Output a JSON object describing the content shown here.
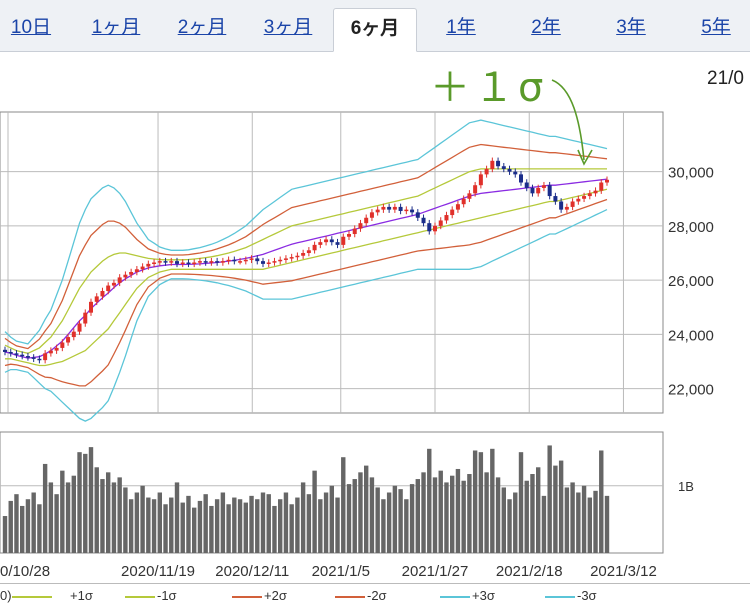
{
  "tabs": [
    {
      "label": "10日",
      "active": false
    },
    {
      "label": "1ヶ月",
      "active": false
    },
    {
      "label": "2ヶ月",
      "active": false
    },
    {
      "label": "3ヶ月",
      "active": false
    },
    {
      "label": "6ヶ月",
      "active": true
    },
    {
      "label": "1年",
      "active": false
    },
    {
      "label": "2年",
      "active": false
    },
    {
      "label": "3年",
      "active": false
    },
    {
      "label": "5年",
      "active": false
    }
  ],
  "header_date": "21/0",
  "annotation": "＋１σ",
  "legend": [
    {
      "label": "0)",
      "color": "#8a2be2"
    },
    {
      "label": "+1σ",
      "color": "#b5c93a"
    },
    {
      "label": "-1σ",
      "color": "#b5c93a"
    },
    {
      "label": "+2σ",
      "color": "#d2603a"
    },
    {
      "label": "-2σ",
      "color": "#d2603a"
    },
    {
      "label": "+3σ",
      "color": "#5bc5d8"
    },
    {
      "label": "-3σ",
      "color": "#5bc5d8"
    }
  ],
  "chart_data": {
    "type": "candlestick",
    "price_yticks": [
      22000,
      24000,
      26000,
      28000,
      30000
    ],
    "price_ytick_labels": [
      "22,000",
      "24,000",
      "26,000",
      "28,000",
      "30,000"
    ],
    "price_ylim": [
      21100,
      32200
    ],
    "volume_ytick_labels": [
      "1B"
    ],
    "volume_ytick_values": [
      1.0
    ],
    "volume_ylim": [
      0,
      1.8
    ],
    "x_tick_labels": [
      "0/10/28",
      "2020/11/19",
      "2020/12/11",
      "2021/1/5",
      "2021/1/27",
      "2021/2/18",
      "2021/3/12"
    ],
    "x_tick_index": [
      12,
      28,
      44,
      59,
      75,
      91,
      107
    ],
    "close": [
      23350,
      23300,
      23250,
      23200,
      23150,
      23100,
      23050,
      23300,
      23400,
      23500,
      23700,
      23900,
      24100,
      24400,
      24800,
      25200,
      25400,
      25600,
      25800,
      25900,
      26100,
      26200,
      26300,
      26400,
      26500,
      26600,
      26650,
      26700,
      26650,
      26700,
      26600,
      26650,
      26600,
      26650,
      26700,
      26650,
      26700,
      26650,
      26700,
      26750,
      26700,
      26700,
      26750,
      26800,
      26700,
      26600,
      26650,
      26700,
      26750,
      26800,
      26850,
      26900,
      27000,
      27100,
      27300,
      27400,
      27500,
      27400,
      27300,
      27600,
      27700,
      27900,
      28100,
      28300,
      28500,
      28600,
      28700,
      28600,
      28700,
      28550,
      28600,
      28500,
      28300,
      28100,
      27800,
      28000,
      28200,
      28400,
      28600,
      28800,
      29000,
      29200,
      29500,
      29900,
      30100,
      30400,
      30200,
      30100,
      30000,
      29900,
      29600,
      29400,
      29200,
      29400,
      29500,
      29100,
      28900,
      28600,
      28700,
      28900,
      29000,
      29100,
      29200,
      29300,
      29600,
      29700
    ],
    "upper1": [
      23600,
      23500,
      23400,
      23350,
      23300,
      23400,
      23500,
      23700,
      23900,
      24200,
      24500,
      24900,
      25300,
      25700,
      26000,
      26300,
      26500,
      26700,
      26850,
      26950,
      27000,
      27000,
      26950,
      26900,
      26850,
      26800,
      26780,
      26760,
      26750,
      26750,
      26750,
      26750,
      26760,
      26780,
      26800,
      26830,
      26860,
      26900,
      26950,
      27000,
      27060,
      27130,
      27200,
      27300,
      27400,
      27500,
      27600,
      27700,
      27800,
      27900,
      28000,
      28050,
      28100,
      28150,
      28200,
      28250,
      28300,
      28350,
      28400,
      28450,
      28500,
      28550,
      28600,
      28650,
      28700,
      28750,
      28800,
      28850,
      28900,
      28950,
      29000,
      29050,
      29100,
      29200,
      29300,
      29400,
      29500,
      29600,
      29700,
      29800,
      29900,
      30000,
      30050,
      30100,
      30100,
      30100,
      30100,
      30100,
      30100,
      30100,
      30100,
      30100,
      30100,
      30100,
      30100,
      30100,
      30100,
      30100,
      30100,
      30100,
      30100,
      30100,
      30100,
      30100,
      30100,
      30100
    ],
    "lower1": [
      23100,
      23100,
      23050,
      23000,
      22950,
      22900,
      22850,
      22850,
      22900,
      22950,
      23000,
      23100,
      23200,
      23300,
      23400,
      23600,
      23800,
      24000,
      24200,
      24500,
      24800,
      25100,
      25400,
      25700,
      25900,
      26100,
      26200,
      26300,
      26350,
      26400,
      26400,
      26400,
      26400,
      26400,
      26400,
      26400,
      26400,
      26400,
      26400,
      26400,
      26400,
      26400,
      26400,
      26400,
      26400,
      26400,
      26450,
      26500,
      26550,
      26600,
      26650,
      26700,
      26750,
      26800,
      26850,
      26900,
      26950,
      27000,
      27050,
      27100,
      27150,
      27200,
      27250,
      27300,
      27350,
      27400,
      27450,
      27500,
      27550,
      27600,
      27650,
      27700,
      27750,
      27800,
      27850,
      27900,
      27950,
      28000,
      28050,
      28100,
      28150,
      28200,
      28250,
      28300,
      28350,
      28400,
      28450,
      28500,
      28550,
      28600,
      28650,
      28700,
      28750,
      28800,
      28850,
      28900,
      28900,
      28950,
      29000,
      29050,
      29100,
      29150,
      29200,
      29250,
      29300,
      29350
    ]
  }
}
